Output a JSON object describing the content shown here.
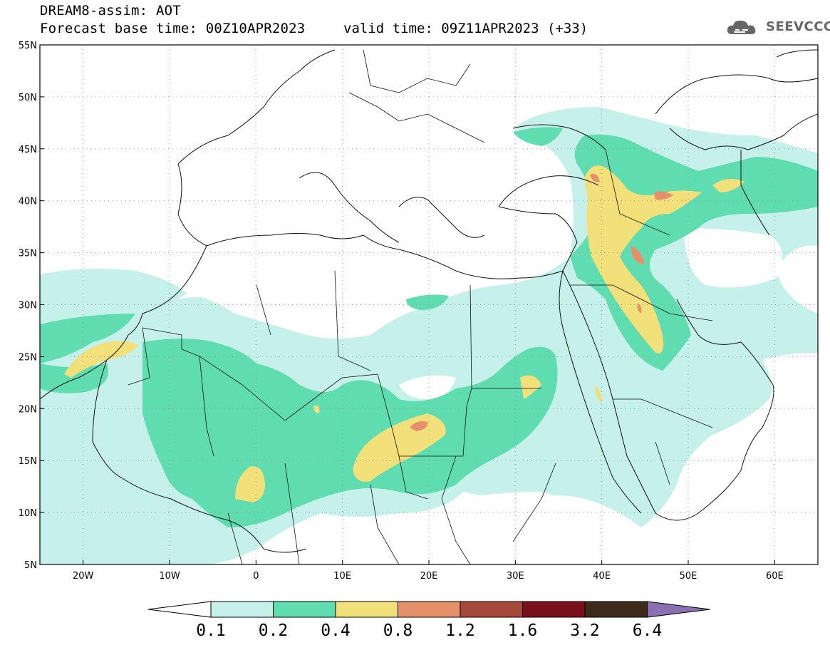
{
  "title": {
    "line1": "DREAM8-assim: AOT",
    "line2": "Forecast base time: 00Z10APR2023",
    "valid": "valid time: 09Z11APR2023 (+33)"
  },
  "logo": {
    "text": "SEEVCCC",
    "icon": "cloud-logo-icon"
  },
  "map": {
    "lon_range": [
      -25,
      65
    ],
    "lat_range": [
      5,
      55
    ],
    "x_ticks": [
      "20W",
      "10W",
      "0",
      "10E",
      "20E",
      "30E",
      "40E",
      "50E",
      "60E"
    ],
    "y_ticks": [
      "55N",
      "50N",
      "45N",
      "40N",
      "35N",
      "30N",
      "25N",
      "20N",
      "15N",
      "10N",
      "5N"
    ],
    "grid": true
  },
  "colorbar": {
    "labels": [
      "0.1",
      "0.2",
      "0.4",
      "0.8",
      "1.2",
      "1.6",
      "3.2",
      "6.4"
    ],
    "colors": [
      "#c6f0ea",
      "#5fdcb0",
      "#f2e07a",
      "#e5906a",
      "#a7493a",
      "#7a0f1c",
      "#3d2a1a",
      "#8b6fb0"
    ]
  },
  "colors": {
    "c1": "#c6f0ea",
    "c2": "#5fdcb0",
    "c3": "#f2e07a",
    "c4": "#e5906a"
  }
}
